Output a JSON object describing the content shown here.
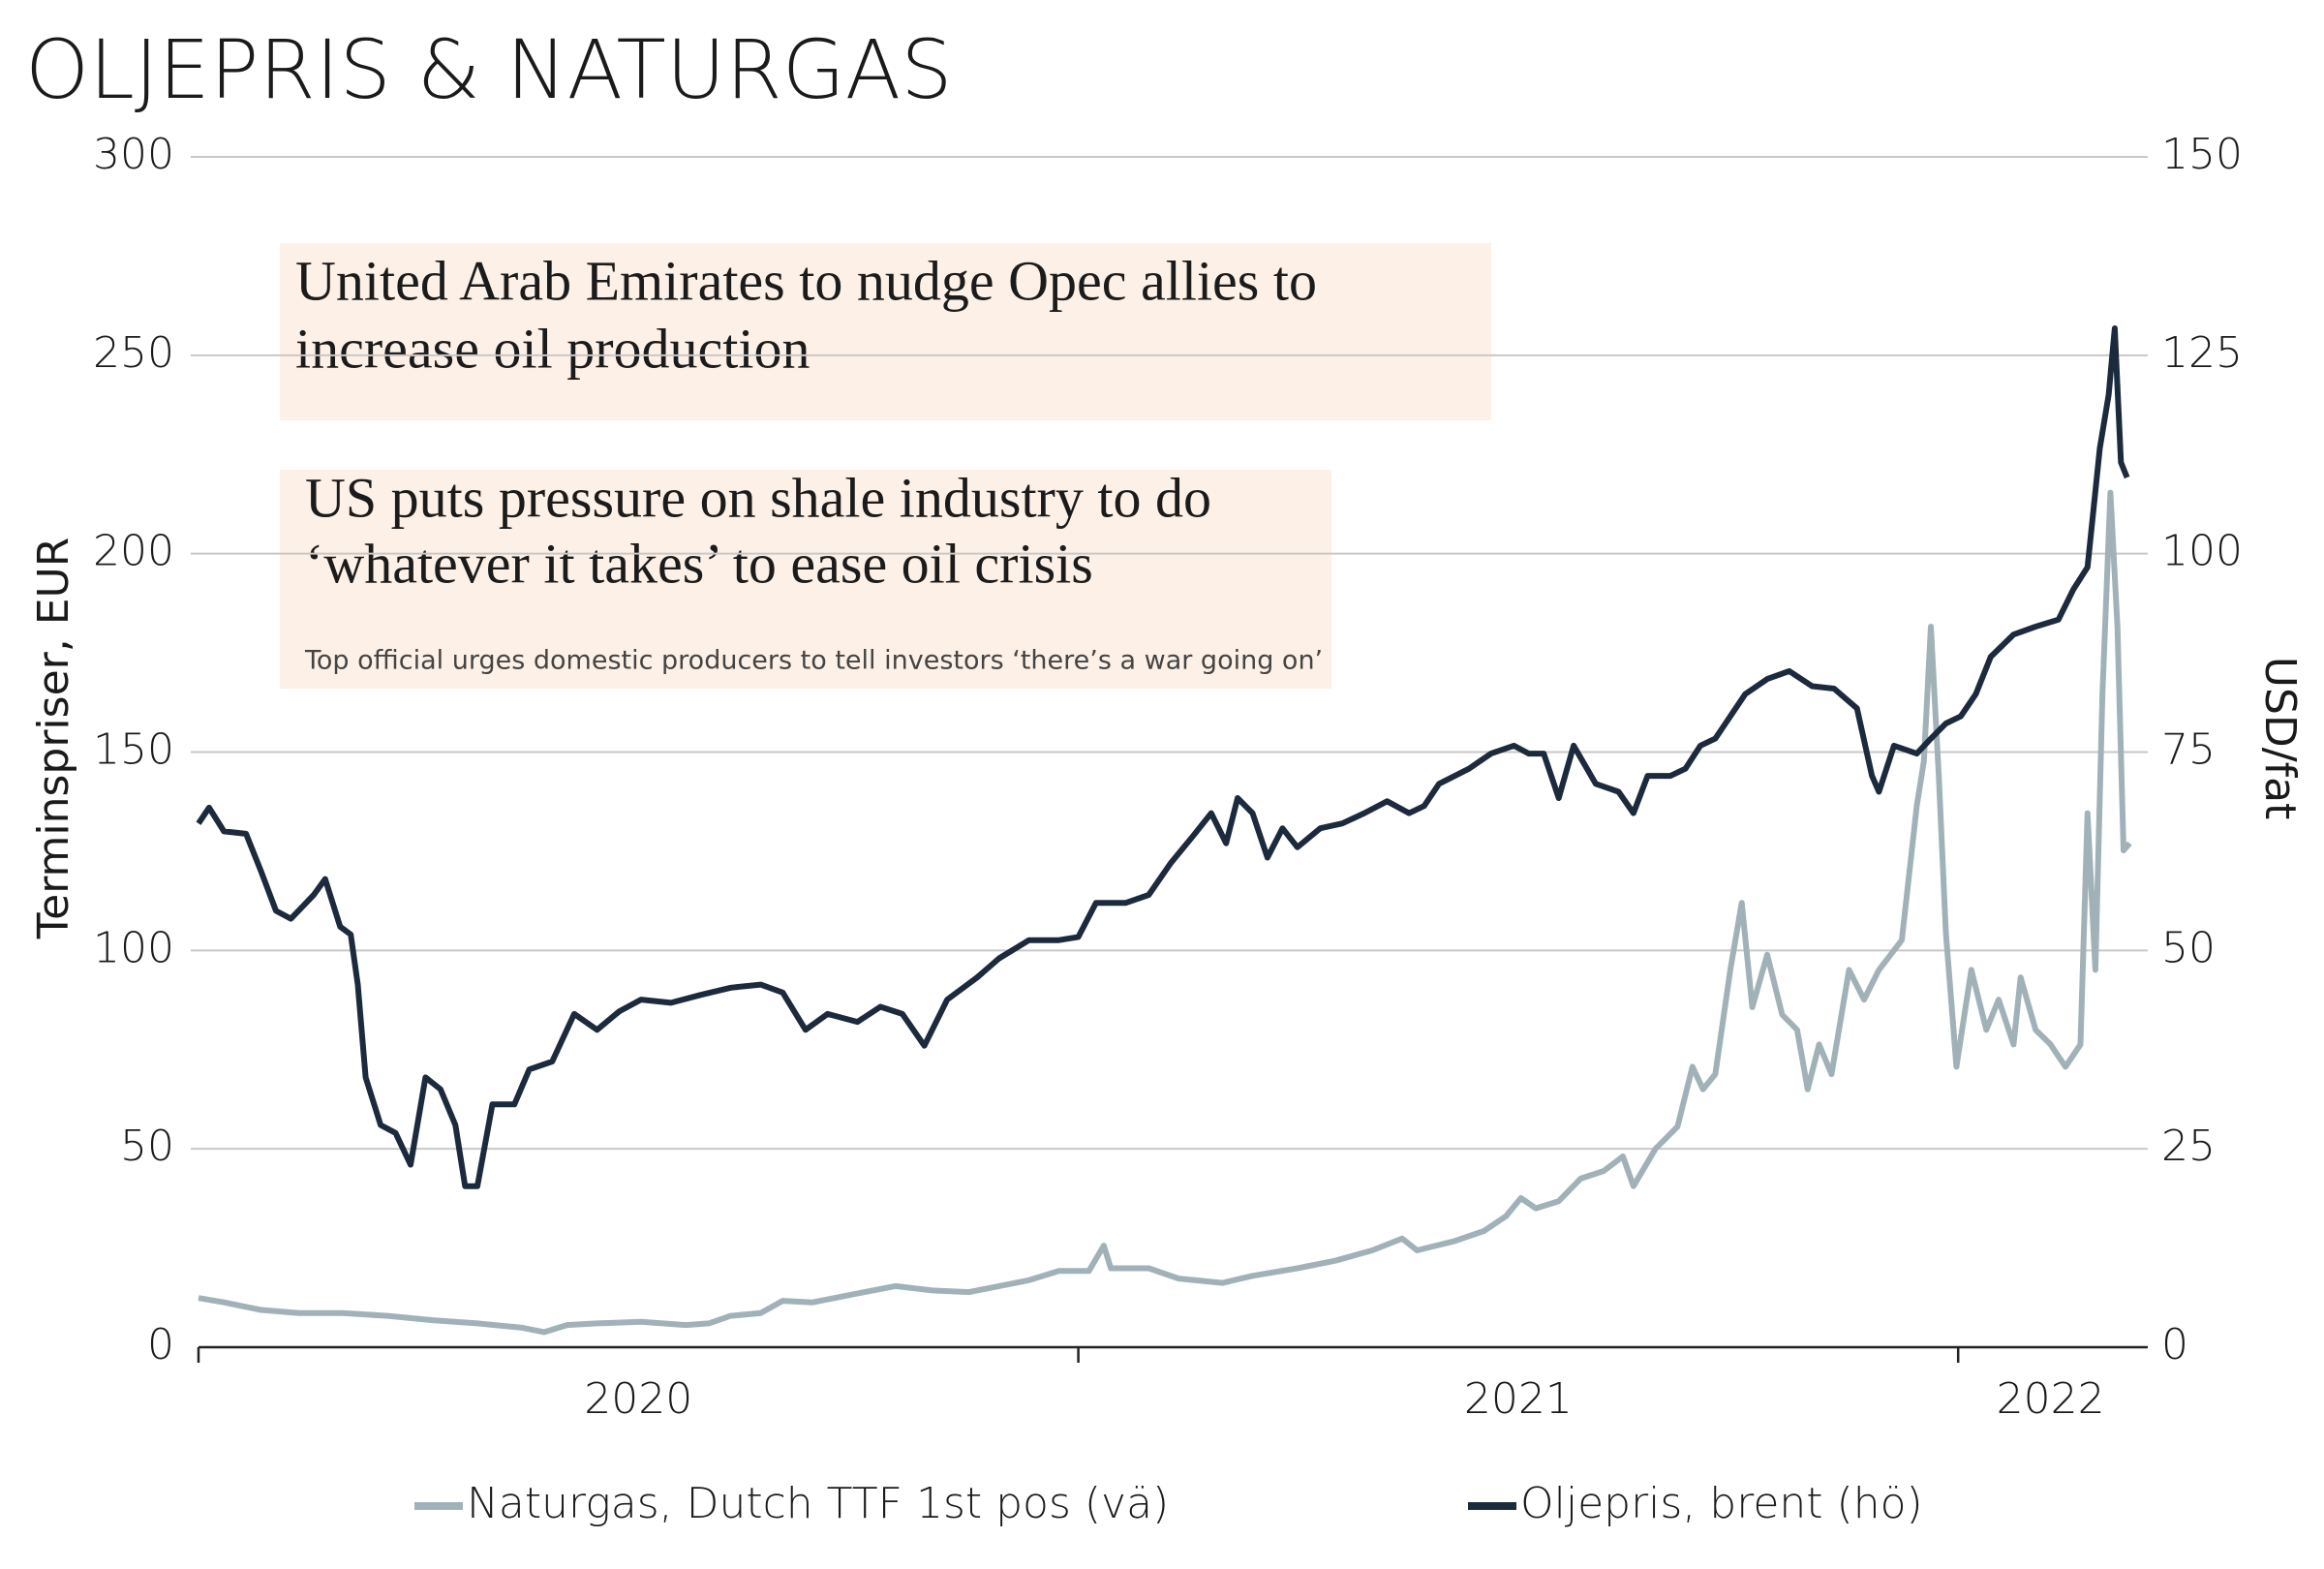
{
  "chart_data": {
    "type": "line",
    "title": "OLJEPRIS & NATURGAS",
    "ylabel": "Terminspriser, EUR",
    "y2label": "USD/fat",
    "xlim": [
      2020,
      2022.21
    ],
    "xticks": [
      2020,
      2021,
      2022
    ],
    "xtick_labels": [
      {
        "value": 2020.5,
        "label": "2020"
      },
      {
        "value": 2021.5,
        "label": "2021"
      },
      {
        "value": 2022.105,
        "label": "2022"
      }
    ],
    "ylim": [
      0,
      300
    ],
    "yticks": [
      0,
      50,
      100,
      150,
      200,
      250,
      300
    ],
    "y2lim": [
      0,
      150
    ],
    "y2ticks": [
      0,
      25,
      50,
      75,
      100,
      125,
      150
    ],
    "grid": true,
    "legend": "bottom",
    "annotations": [
      {
        "headline": [
          "United Arab Emirates to nudge Opec allies to",
          "increase oil production"
        ]
      },
      {
        "headline": [
          "US puts pressure on shale industry to do",
          "‘whatever it takes’ to ease oil crisis"
        ],
        "subheadline": "Top official urges domestic producers to tell investors ‘there’s a war going on’"
      }
    ],
    "series": [
      {
        "name": "Naturgas, Dutch TTF 1st pos (vä)",
        "color": "#a0b2b8",
        "axis": "y",
        "x": [
          2020.0,
          2020.029,
          2020.071,
          2020.114,
          2020.164,
          2020.215,
          2020.266,
          2020.317,
          2020.368,
          2020.393,
          2020.419,
          2020.453,
          2020.503,
          2020.554,
          2020.58,
          2020.605,
          2020.639,
          2020.664,
          2020.698,
          2020.741,
          2020.792,
          2020.834,
          2020.876,
          2020.91,
          2020.944,
          2020.978,
          2021.012,
          2021.029,
          2021.037,
          2021.08,
          2021.114,
          2021.164,
          2021.198,
          2021.249,
          2021.292,
          2021.334,
          2021.368,
          2021.385,
          2021.427,
          2021.461,
          2021.486,
          2021.503,
          2021.52,
          2021.546,
          2021.571,
          2021.597,
          2021.619,
          2021.631,
          2021.656,
          2021.681,
          2021.698,
          2021.71,
          2021.724,
          2021.741,
          2021.754,
          2021.766,
          2021.783,
          2021.8,
          2021.817,
          2021.829,
          2021.842,
          2021.856,
          2021.876,
          2021.893,
          2021.91,
          2021.936,
          2021.953,
          2021.961,
          2021.969,
          2021.978,
          2021.986,
          2021.998,
          2022.015,
          2022.032,
          2022.046,
          2022.063,
          2022.071,
          2022.088,
          2022.105,
          2022.122,
          2022.139,
          2022.147,
          2022.156,
          2022.164,
          2022.173,
          2022.181,
          2022.188,
          2022.195
        ],
        "values": [
          12.4,
          11.3,
          9.4,
          8.6,
          8.6,
          7.9,
          6.8,
          6,
          4.9,
          3.8,
          5.6,
          6,
          6.4,
          5.6,
          6,
          7.9,
          8.6,
          11.7,
          11.3,
          13.2,
          15.4,
          14.3,
          13.9,
          15.4,
          16.9,
          19.2,
          19.2,
          25.6,
          19.9,
          19.9,
          17.3,
          16.2,
          18,
          19.9,
          21.8,
          24.4,
          27.4,
          24.4,
          26.7,
          29.3,
          33,
          37.6,
          35,
          36.8,
          42.5,
          44.4,
          48.1,
          40.6,
          50,
          55.6,
          70.7,
          65,
          68.8,
          95.1,
          112,
          85.7,
          98.9,
          83.8,
          80,
          65,
          76.3,
          68.8,
          95.1,
          87.6,
          95.1,
          102.6,
          136.5,
          147.7,
          181.6,
          144,
          104.5,
          70.7,
          95.1,
          80,
          87.6,
          76.3,
          93.2,
          80,
          76.3,
          70.7,
          76.3,
          134.6,
          95.1,
          164.7,
          215.4,
          181.6,
          125.2,
          127
        ]
      },
      {
        "name": "Oljepris, brent (hö)",
        "color": "#1c2a3e",
        "axis": "y2",
        "x": [
          2020.0,
          2020.012,
          2020.029,
          2020.054,
          2020.071,
          2020.088,
          2020.105,
          2020.131,
          2020.144,
          2020.161,
          2020.173,
          2020.181,
          2020.19,
          2020.207,
          2020.224,
          2020.241,
          2020.258,
          2020.275,
          2020.292,
          2020.303,
          2020.317,
          2020.334,
          2020.359,
          2020.376,
          2020.402,
          2020.427,
          2020.453,
          2020.478,
          2020.503,
          2020.537,
          2020.571,
          2020.605,
          2020.639,
          2020.664,
          2020.69,
          2020.715,
          2020.749,
          2020.775,
          2020.8,
          2020.825,
          2020.851,
          2020.885,
          2020.91,
          2020.944,
          2020.978,
          2021.0,
          2021.02,
          2021.054,
          2021.08,
          2021.105,
          2021.131,
          2021.151,
          2021.168,
          2021.181,
          2021.198,
          2021.215,
          2021.232,
          2021.249,
          2021.275,
          2021.3,
          2021.325,
          2021.351,
          2021.376,
          2021.393,
          2021.41,
          2021.444,
          2021.469,
          2021.495,
          2021.512,
          2021.529,
          2021.546,
          2021.563,
          2021.588,
          2021.614,
          2021.631,
          2021.647,
          2021.673,
          2021.69,
          2021.707,
          2021.724,
          2021.741,
          2021.758,
          2021.783,
          2021.808,
          2021.834,
          2021.859,
          2021.885,
          2021.902,
          2021.91,
          2021.927,
          2021.953,
          2021.969,
          2021.986,
          2022.003,
          2022.02,
          2022.037,
          2022.063,
          2022.088,
          2022.114,
          2022.131,
          2022.147,
          2022.161,
          2022.171,
          2022.178,
          2022.185,
          2022.192
        ],
        "values": [
          66,
          68,
          65,
          64.7,
          60,
          55,
          54,
          57,
          59,
          53,
          52,
          45.7,
          34,
          28,
          27,
          23,
          34,
          32.5,
          28,
          20.3,
          20.3,
          30.6,
          30.6,
          35,
          36,
          42,
          40,
          42.3,
          43.8,
          43.4,
          44.4,
          45.3,
          45.7,
          44.7,
          40,
          42,
          41,
          42.9,
          42,
          38,
          43.8,
          46.6,
          49,
          51.3,
          51.3,
          51.7,
          56,
          56,
          57,
          61,
          64.5,
          67.3,
          63.5,
          69.2,
          67.3,
          61.7,
          65.4,
          63,
          65.4,
          66,
          67.3,
          68.8,
          67.3,
          68.2,
          71,
          72.9,
          74.8,
          75.8,
          74.8,
          74.8,
          69.2,
          75.8,
          71,
          70,
          67.3,
          72,
          72,
          72.9,
          75.8,
          76.7,
          79.5,
          82.3,
          84.2,
          85.2,
          83.3,
          83,
          80.5,
          72,
          70,
          75.8,
          74.8,
          76.7,
          78.6,
          79.5,
          82.3,
          87,
          89.8,
          90.8,
          91.7,
          95.5,
          98.3,
          113.3,
          120,
          128.4,
          111.5,
          109.6
        ]
      }
    ]
  }
}
